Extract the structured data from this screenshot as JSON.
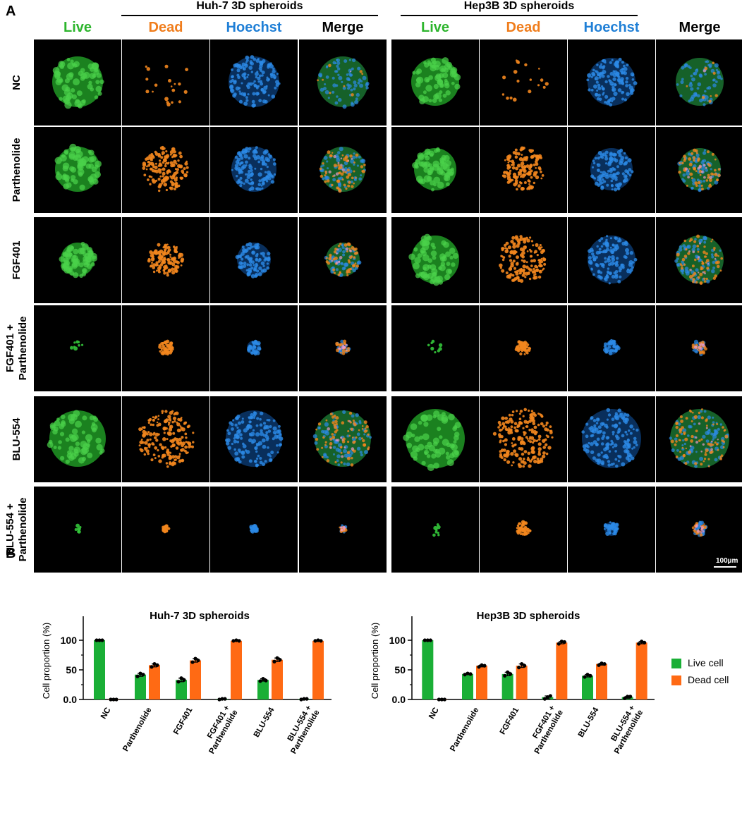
{
  "panel_a": {
    "letter": "A",
    "groups": [
      {
        "title": "Huh-7 3D spheroids",
        "columns": [
          "Live",
          "Dead",
          "Hoechst",
          "Merge"
        ]
      },
      {
        "title": "Hep3B 3D spheroids",
        "columns": [
          "Live",
          "Dead",
          "Hoechst",
          "Merge"
        ]
      }
    ],
    "rows": [
      "NC",
      "Parthenolide",
      "FGF401",
      "FGF401 +\nParthenolide",
      "BLU-554",
      "BLU-554 +\nParthenolide"
    ],
    "channel_colors": {
      "Live": "#2db52d",
      "Dead": "#f07d1c",
      "Hoechst": "#1f7fd6",
      "Merge": "#000000"
    },
    "scale_bar": "100µm"
  },
  "panel_b": {
    "letter": "B",
    "legend": [
      {
        "label": "Live cell",
        "color": "#1aaf36"
      },
      {
        "label": "Dead cell",
        "color": "#ff6a14"
      }
    ]
  },
  "chart_data": [
    {
      "type": "bar",
      "title": "Huh-7 3D spheroids",
      "ylabel": "Cell proportion (%)",
      "ylim": [
        0,
        120
      ],
      "yticks": [
        "0.0",
        "50",
        "100"
      ],
      "categories": [
        "NC",
        "Parthenolide",
        "FGF401",
        "FGF401 +\nParthenolide",
        "BLU-554",
        "BLU-554  +\nParthenolide"
      ],
      "series": [
        {
          "name": "Live cell",
          "values": [
            100,
            42,
            33,
            1,
            33,
            1
          ],
          "points": [
            [
              100,
              100,
              100
            ],
            [
              39,
              44,
              42
            ],
            [
              30,
              36,
              33
            ],
            [
              0,
              1,
              1
            ],
            [
              31,
              35,
              32
            ],
            [
              0,
              1,
              1
            ]
          ]
        },
        {
          "name": "Dead cell",
          "values": [
            0,
            58,
            66,
            99,
            67,
            99
          ],
          "points": [
            [
              0,
              0,
              0
            ],
            [
              55,
              60,
              58
            ],
            [
              63,
              69,
              66
            ],
            [
              99,
              100,
              99
            ],
            [
              64,
              70,
              67
            ],
            [
              99,
              100,
              99
            ]
          ]
        }
      ]
    },
    {
      "type": "bar",
      "title": "Hep3B 3D spheroids",
      "ylabel": "Cell proportion (%)",
      "ylim": [
        0,
        120
      ],
      "yticks": [
        "0.0",
        "50",
        "100"
      ],
      "categories": [
        "NC",
        "Parthenolide",
        "FGF401",
        "FGF401 +\nParthenolide",
        "BLU-554",
        "BLU-554  +\nParthenolide"
      ],
      "series": [
        {
          "name": "Live cell",
          "values": [
            100,
            43,
            43,
            4,
            40,
            4
          ],
          "points": [
            [
              100,
              100,
              100
            ],
            [
              42,
              44,
              43
            ],
            [
              40,
              46,
              43
            ],
            [
              1,
              4,
              6
            ],
            [
              38,
              42,
              40
            ],
            [
              2,
              5,
              5
            ]
          ]
        },
        {
          "name": "Dead cell",
          "values": [
            0,
            57,
            57,
            96,
            60,
            96
          ],
          "points": [
            [
              0,
              0,
              0
            ],
            [
              55,
              58,
              57
            ],
            [
              54,
              60,
              57
            ],
            [
              94,
              98,
              97
            ],
            [
              58,
              61,
              60
            ],
            [
              94,
              98,
              96
            ]
          ]
        }
      ]
    }
  ]
}
